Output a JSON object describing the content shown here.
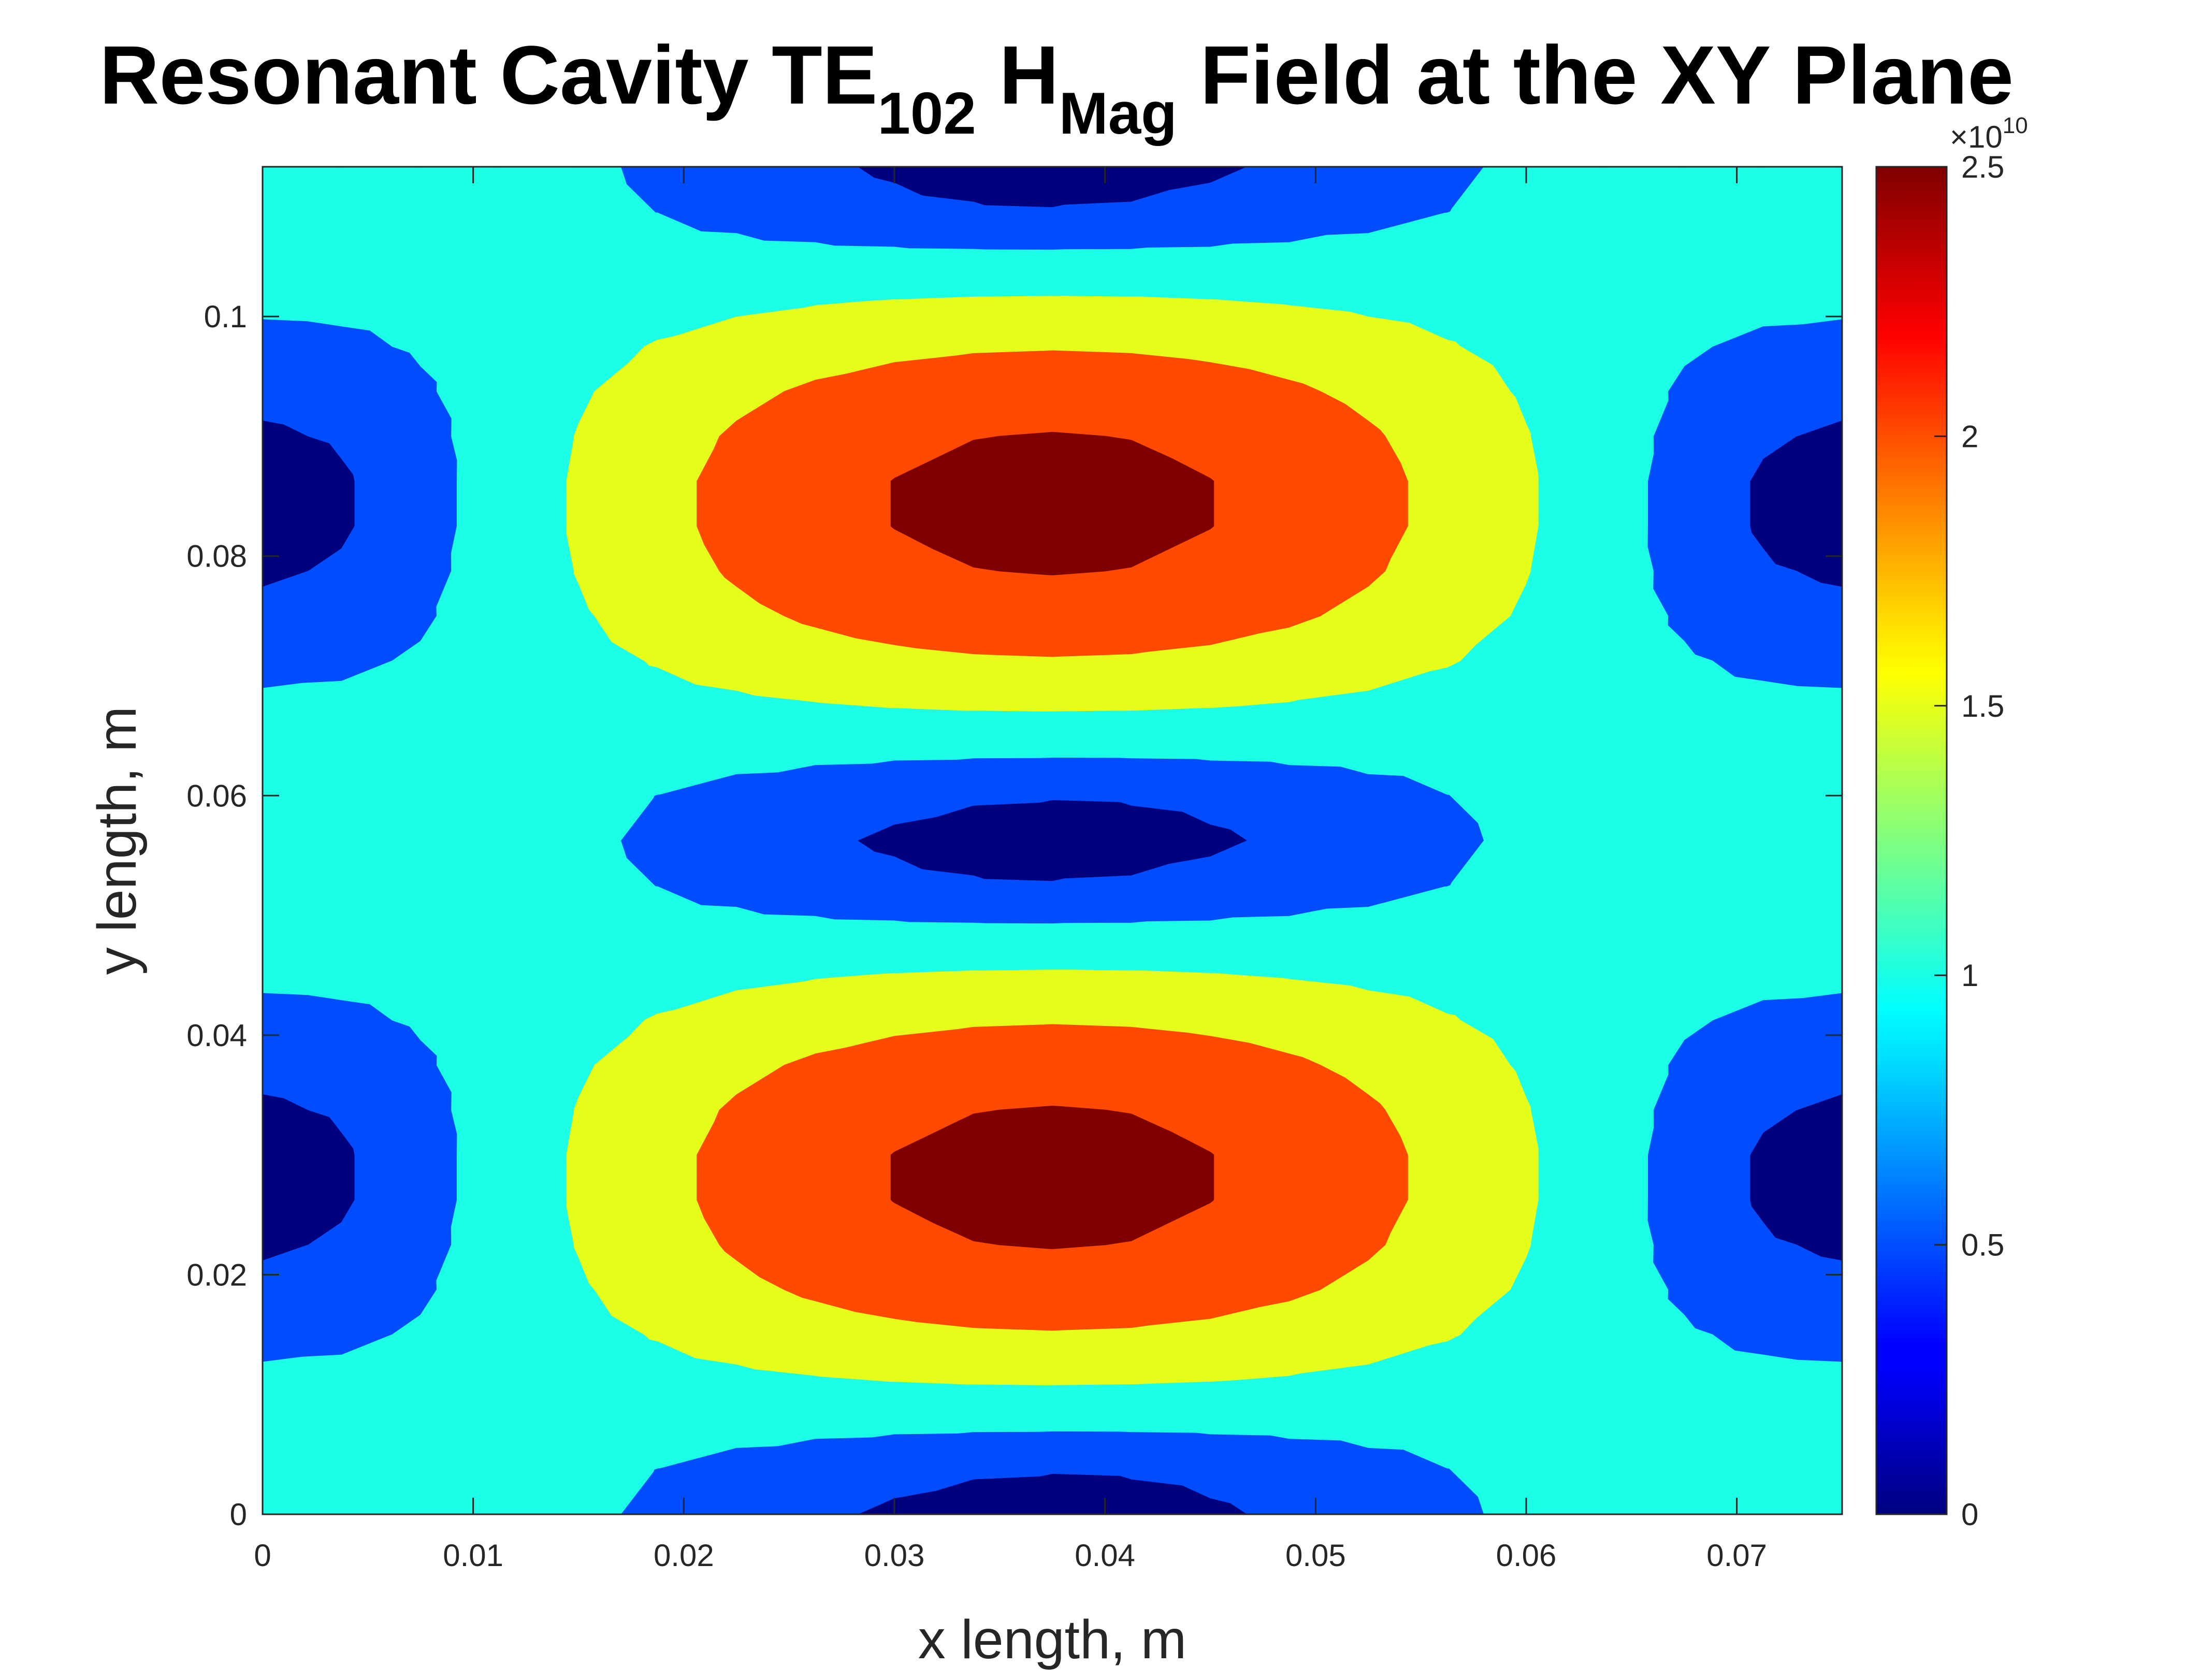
{
  "chart_data": {
    "type": "heatmap",
    "subtype": "filled-contour",
    "title": {
      "prefix": "Resonant Cavity TE",
      "mode_subscript": "102",
      "field": " H",
      "field_subscript": "Mag",
      "suffix": " Field at the XY Plane"
    },
    "xlabel": "x length, m",
    "ylabel": "y length, m",
    "xlim": [
      0,
      0.075
    ],
    "ylim": [
      0,
      0.1125
    ],
    "x_ticks": [
      0,
      0.01,
      0.02,
      0.03,
      0.04,
      0.05,
      0.06,
      0.07
    ],
    "x_tick_labels": [
      "0",
      "0.01",
      "0.02",
      "0.03",
      "0.04",
      "0.05",
      "0.06",
      "0.07"
    ],
    "y_ticks": [
      0,
      0.02,
      0.04,
      0.06,
      0.08,
      0.1
    ],
    "y_tick_labels": [
      "0",
      "0.02",
      "0.04",
      "0.06",
      "0.08",
      "0.1"
    ],
    "colorbar": {
      "colormap": "jet",
      "range": [
        0,
        25000000000
      ],
      "ticks": [
        0,
        0.5,
        1,
        1.5,
        2,
        2.5
      ],
      "tick_labels": [
        "0",
        "0.5",
        "1",
        "1.5",
        "2",
        "2.5"
      ],
      "exponent_base": "×10",
      "exponent": "10"
    },
    "contour_levels": [
      0,
      5000000000,
      10000000000,
      15000000000,
      20000000000,
      25000000000
    ],
    "level_colors": [
      "#00007f",
      "#004cff",
      "#1affe6",
      "#e6ff1a",
      "#ff4a00",
      "#7f0000"
    ],
    "field_model": {
      "description": "|H| for TE102 mode",
      "peak": 26500000000,
      "a": 0.075,
      "d": 0.1125,
      "grid_nx": 21,
      "grid_ny": 31
    },
    "grid": false,
    "legend": "none"
  }
}
